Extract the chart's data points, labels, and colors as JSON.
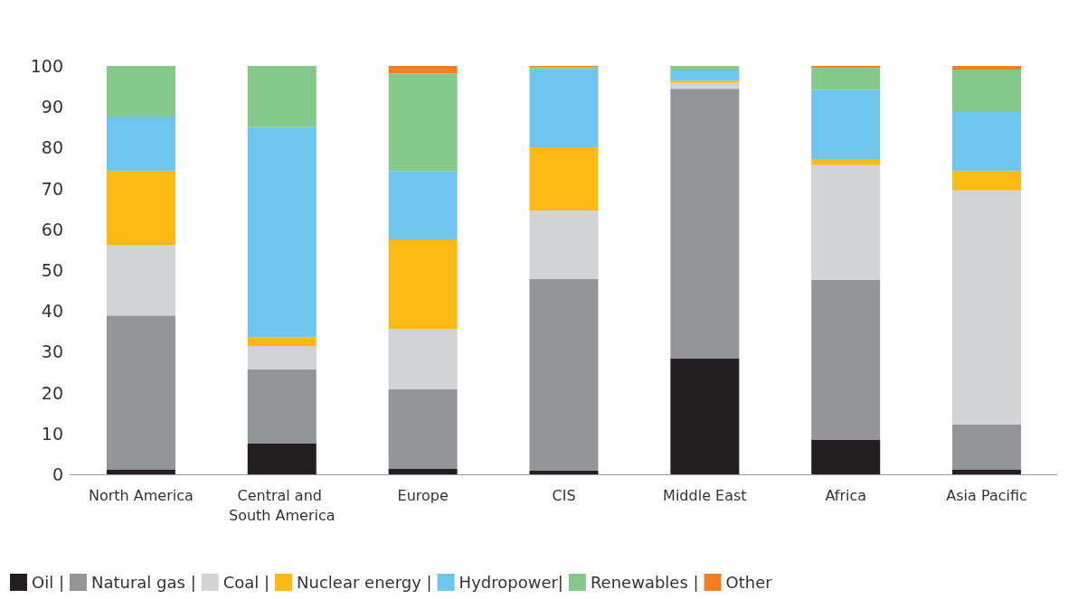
{
  "chart_data": {
    "type": "bar",
    "stacked": true,
    "categories": [
      "North America",
      "Central and South America",
      "Europe",
      "CIS",
      "Middle East",
      "Africa",
      "Asia Pacific"
    ],
    "series": [
      {
        "name": "Oil |",
        "color": "#231f20",
        "values": [
          1.1,
          7.5,
          1.3,
          0.9,
          28.3,
          8.4,
          1.1
        ]
      },
      {
        "name": "Natural gas |",
        "color": "#939598",
        "values": [
          37.8,
          18.2,
          19.5,
          46.9,
          66.1,
          39.2,
          11.1
        ]
      },
      {
        "name": "Coal |",
        "color": "#d1d3d4",
        "values": [
          17.3,
          5.7,
          14.8,
          16.8,
          1.5,
          28.1,
          57.3
        ]
      },
      {
        "name": "Nuclear energy |",
        "color": "#fcb813",
        "values": [
          18.1,
          2.2,
          21.9,
          15.5,
          0.5,
          1.5,
          4.8
        ]
      },
      {
        "name": "Hydropower|",
        "color": "#6dc6ee",
        "values": [
          13.3,
          51.4,
          16.8,
          19.2,
          2.5,
          17.0,
          14.4
        ]
      },
      {
        "name": "Renewables |",
        "color": "#84c98a",
        "values": [
          12.4,
          15.0,
          23.9,
          0.4,
          1.1,
          5.3,
          10.4
        ]
      },
      {
        "name": "Other",
        "color": "#f37f21",
        "values": [
          0,
          0,
          1.8,
          0.3,
          0,
          0.5,
          0.9
        ]
      }
    ],
    "ylim": [
      0,
      100
    ],
    "yticks": [
      0,
      10,
      20,
      30,
      40,
      50,
      60,
      70,
      80,
      90,
      100
    ],
    "grid": false,
    "legend": "bottom left"
  }
}
